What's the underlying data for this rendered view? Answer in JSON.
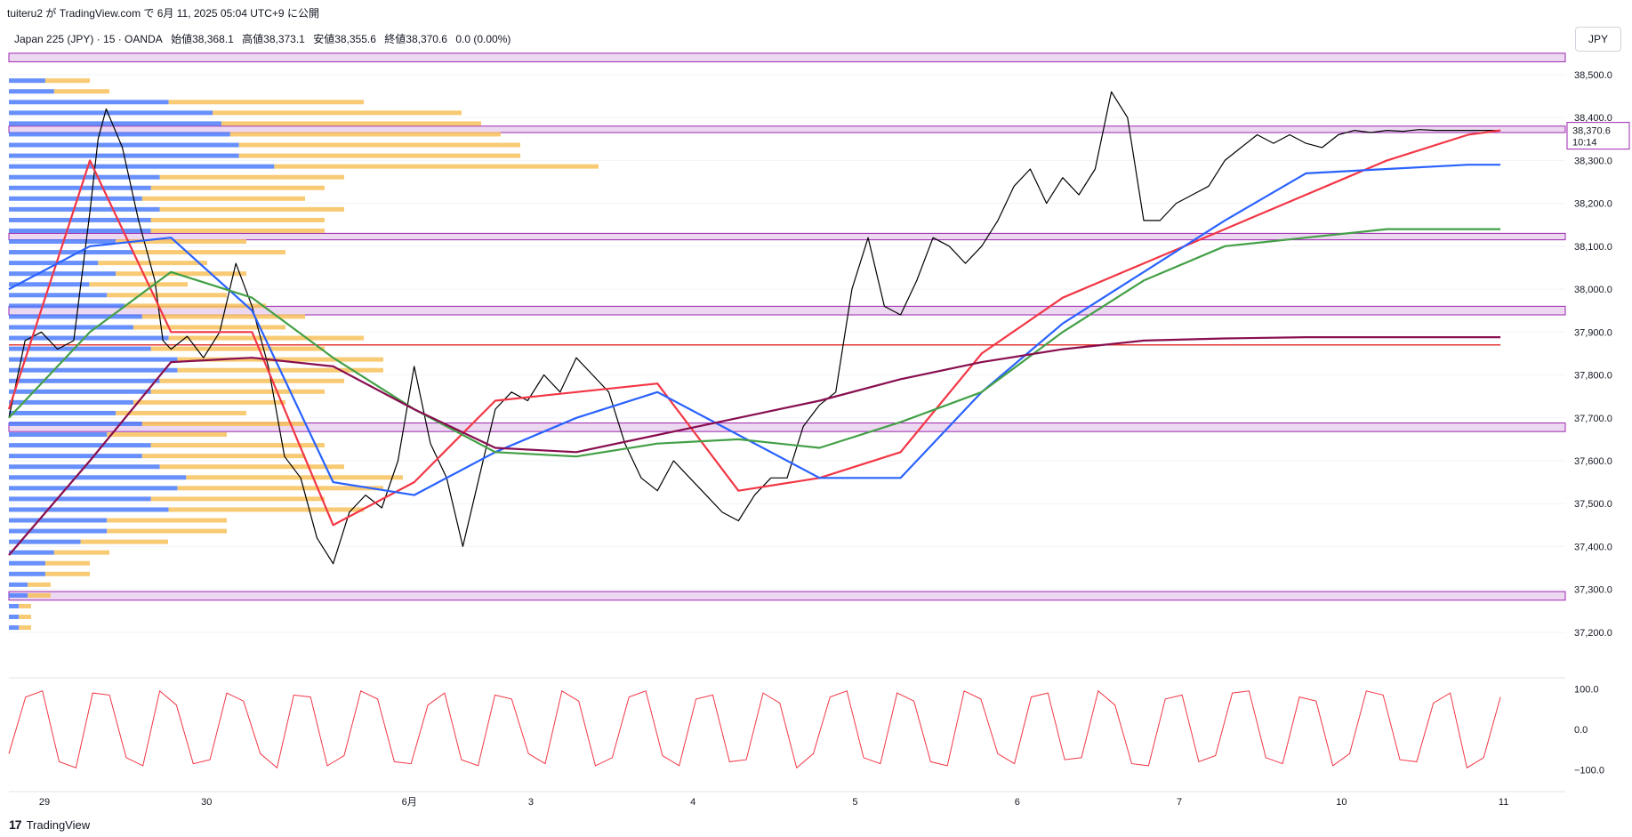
{
  "header": {
    "publish_line": "tuiteru2 が TradingView.com で 6月 11, 2025 05:04 UTC+9 に公開"
  },
  "symbol": {
    "name": "Japan 225 (JPY) · 15 · OANDA",
    "open": "始値38,368.1",
    "high": "高値38,373.1",
    "low": "安値38,355.6",
    "close": "終値38,370.6",
    "change": "0.0 (0.00%)"
  },
  "currency_button": "JPY",
  "footer": {
    "brand": "TradingView",
    "logo": "tv-logo-icon"
  },
  "price_tag": {
    "value": "38,370.6",
    "countdown": "10:14",
    "color": "#089981"
  },
  "oscillator_labels": [
    "100.0",
    "0.0",
    "−100.0"
  ],
  "colors": {
    "price": "#000000",
    "ema_fast": "#f23645",
    "ema_mid": "#2962ff",
    "ema_slow": "#43a047",
    "ema_long": "#880e4f",
    "zone": "#9c27b0",
    "vp_blue": "#4e7dfc",
    "vp_orange": "#f7c15a",
    "hline": "#e53935",
    "osc": "#f23645"
  },
  "chart_data": {
    "type": "line",
    "title": "",
    "ylim": [
      37150,
      38560
    ],
    "y_ticks": [
      37200,
      37300,
      37400,
      37500,
      37600,
      37700,
      37800,
      37900,
      38000,
      38100,
      38200,
      38300,
      38400,
      38500
    ],
    "y_tick_labels": [
      "37,200.0",
      "37,300.0",
      "37,400.0",
      "37,500.0",
      "37,600.0",
      "37,700.0",
      "37,800.0",
      "37,900.0",
      "38,000.0",
      "38,100.0",
      "38,200.0",
      "38,300.0",
      "38,400.0",
      "38,500.0"
    ],
    "x_labels": [
      "29",
      "30",
      "6月",
      "3",
      "4",
      "5",
      "6",
      "7",
      "10",
      "11"
    ],
    "x_label_positions": [
      0.0,
      1.0,
      2.25,
      3.0,
      4.0,
      5.0,
      6.0,
      7.0,
      8.0,
      9.0
    ],
    "zones": [
      [
        38530,
        38550
      ],
      [
        38365,
        38380
      ],
      [
        38115,
        38130
      ],
      [
        37940,
        37960
      ],
      [
        37668,
        37688
      ],
      [
        37275,
        37295
      ]
    ],
    "horizontal_line": 37870,
    "series": [
      {
        "name": "",
        "role": "price",
        "x": [
          0,
          0.1,
          0.2,
          0.3,
          0.4,
          0.5,
          0.55,
          0.6,
          0.7,
          0.8,
          0.9,
          0.95,
          1.0,
          1.1,
          1.2,
          1.3,
          1.4,
          1.5,
          1.6,
          1.7,
          1.8,
          1.9,
          2.0,
          2.1,
          2.2,
          2.3,
          2.4,
          2.5,
          2.6,
          2.7,
          2.8,
          2.9,
          3.0,
          3.1,
          3.2,
          3.3,
          3.4,
          3.5,
          3.6,
          3.7,
          3.8,
          3.9,
          4.0,
          4.1,
          4.2,
          4.3,
          4.4,
          4.5,
          4.6,
          4.7,
          4.8,
          4.9,
          5.0,
          5.1,
          5.2,
          5.3,
          5.4,
          5.5,
          5.6,
          5.7,
          5.8,
          5.9,
          6.0,
          6.1,
          6.2,
          6.3,
          6.4,
          6.5,
          6.6,
          6.7,
          6.8,
          6.9,
          7.0,
          7.1,
          7.2,
          7.3,
          7.4,
          7.5,
          7.6,
          7.7,
          7.8,
          7.9,
          8.0,
          8.1,
          8.2,
          8.3,
          8.4,
          8.5,
          8.6,
          8.7,
          8.8,
          8.9,
          9.0,
          9.1,
          9.2
        ],
        "values": [
          37700,
          37880,
          37900,
          37860,
          37880,
          38180,
          38350,
          38420,
          38330,
          38160,
          38020,
          37880,
          37860,
          37890,
          37840,
          37900,
          38060,
          37960,
          37820,
          37610,
          37560,
          37420,
          37360,
          37480,
          37520,
          37490,
          37600,
          37820,
          37640,
          37560,
          37400,
          37560,
          37720,
          37760,
          37740,
          37800,
          37760,
          37840,
          37800,
          37760,
          37640,
          37560,
          37530,
          37600,
          37560,
          37520,
          37480,
          37460,
          37520,
          37560,
          37560,
          37680,
          37730,
          37760,
          38000,
          38120,
          37960,
          37940,
          38020,
          38120,
          38100,
          38060,
          38100,
          38160,
          38240,
          38280,
          38200,
          38260,
          38220,
          38280,
          38460,
          38400,
          38160,
          38160,
          38200,
          38220,
          38240,
          38300,
          38330,
          38360,
          38340,
          38360,
          38340,
          38330,
          38360,
          38370,
          38365,
          38370,
          38368,
          38372,
          38370,
          38370,
          38370,
          38370,
          38370
        ]
      },
      {
        "name": "",
        "role": "ema_fast",
        "x": [
          0,
          0.5,
          1.0,
          1.5,
          2.0,
          2.5,
          3.0,
          3.5,
          4.0,
          4.5,
          5.0,
          5.5,
          6.0,
          6.5,
          7.0,
          7.5,
          8.0,
          8.5,
          9.0,
          9.2
        ],
        "values": [
          37720,
          38300,
          37900,
          37900,
          37450,
          37550,
          37740,
          37760,
          37780,
          37530,
          37560,
          37620,
          37850,
          37980,
          38060,
          38140,
          38220,
          38300,
          38360,
          38370
        ]
      },
      {
        "name": "",
        "role": "ema_mid",
        "x": [
          0,
          0.5,
          1.0,
          1.5,
          2.0,
          2.5,
          3.0,
          3.5,
          4.0,
          4.5,
          5.0,
          5.5,
          6.0,
          6.5,
          7.0,
          7.5,
          8.0,
          8.5,
          9.0,
          9.2
        ],
        "values": [
          38000,
          38100,
          38120,
          37950,
          37550,
          37520,
          37620,
          37700,
          37760,
          37660,
          37560,
          37560,
          37760,
          37920,
          38040,
          38160,
          38270,
          38280,
          38290,
          38290
        ]
      },
      {
        "name": "",
        "role": "ema_slow",
        "x": [
          0,
          0.5,
          1.0,
          1.5,
          2.0,
          2.5,
          3.0,
          3.5,
          4.0,
          4.5,
          5.0,
          5.5,
          6.0,
          6.5,
          7.0,
          7.5,
          8.0,
          8.5,
          9.0,
          9.2
        ],
        "values": [
          37700,
          37900,
          38040,
          37980,
          37840,
          37720,
          37620,
          37610,
          37640,
          37650,
          37630,
          37690,
          37760,
          37900,
          38020,
          38100,
          38120,
          38140,
          38140,
          38140
        ]
      },
      {
        "name": "",
        "role": "ema_long",
        "x": [
          0,
          0.5,
          1.0,
          1.5,
          2.0,
          2.5,
          3.0,
          3.5,
          4.0,
          4.5,
          5.0,
          5.5,
          6.0,
          6.5,
          7.0,
          7.5,
          8.0,
          8.5,
          9.0,
          9.2
        ],
        "values": [
          37380,
          37600,
          37830,
          37840,
          37820,
          37720,
          37630,
          37620,
          37660,
          37700,
          37740,
          37790,
          37830,
          37860,
          37880,
          37885,
          37888,
          37888,
          37888,
          37888
        ]
      }
    ],
    "oscillator": {
      "ylim": [
        -110,
        110
      ],
      "ticks": [
        100,
        0,
        -100
      ],
      "values": [
        -60,
        80,
        95,
        -80,
        -95,
        90,
        85,
        -70,
        -90,
        95,
        60,
        -85,
        -75,
        90,
        70,
        -60,
        -95,
        85,
        80,
        -90,
        -65,
        95,
        75,
        -80,
        -85,
        60,
        90,
        -75,
        -90,
        85,
        75,
        -60,
        -85,
        95,
        70,
        -90,
        -70,
        80,
        95,
        -65,
        -90,
        75,
        85,
        -80,
        -75,
        90,
        65,
        -95,
        -60,
        80,
        95,
        -70,
        -85,
        90,
        70,
        -80,
        -90,
        95,
        75,
        -60,
        -85,
        80,
        90,
        -75,
        -70,
        95,
        60,
        -85,
        -90,
        75,
        85,
        -80,
        -65,
        90,
        95,
        -70,
        -85,
        80,
        70,
        -90,
        -60,
        95,
        85,
        -75,
        -80,
        65,
        90,
        -95,
        -70,
        80
      ]
    }
  }
}
